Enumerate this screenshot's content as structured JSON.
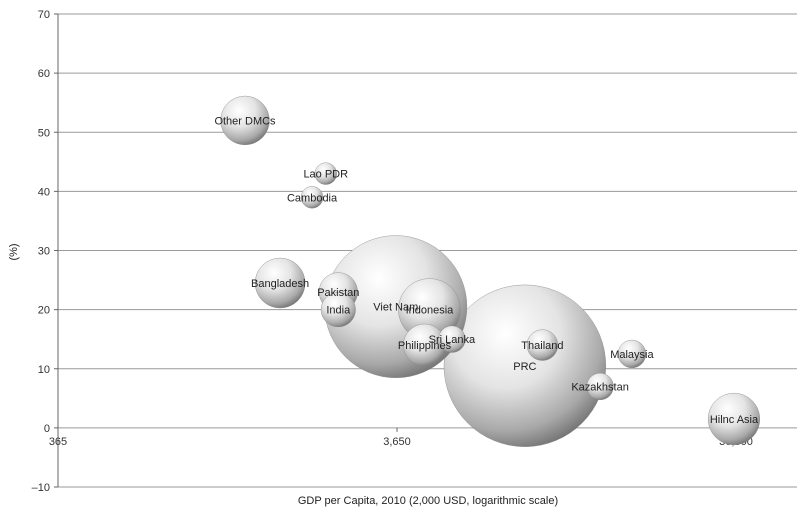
{
  "chart_data": {
    "type": "bubble",
    "title": "",
    "xlabel": "GDP per Capita, 2010 (2,000 USD, logarithmic scale)",
    "ylabel": "(%)",
    "x_scale": "log",
    "xlim": [
      365,
      36500
    ],
    "ylim": [
      -10,
      70
    ],
    "x_ticks": [
      {
        "value": 365,
        "label": "365"
      },
      {
        "value": 3650,
        "label": "3,650"
      },
      {
        "value": 36500,
        "label": "36,500"
      }
    ],
    "y_ticks": [
      {
        "value": -10,
        "label": "–10"
      },
      {
        "value": 0,
        "label": "0"
      },
      {
        "value": 10,
        "label": "10"
      },
      {
        "value": 20,
        "label": "20"
      },
      {
        "value": 30,
        "label": "30"
      },
      {
        "value": 40,
        "label": "40"
      },
      {
        "value": 50,
        "label": "50"
      },
      {
        "value": 60,
        "label": "60"
      },
      {
        "value": 70,
        "label": "70"
      }
    ],
    "grid": "horizontal",
    "legend": "none",
    "points": [
      {
        "label": "Other DMCs",
        "x": 1300,
        "y": 52,
        "size": 4
      },
      {
        "label": "Lao PDR",
        "x": 2250,
        "y": 43,
        "size": 0.8
      },
      {
        "label": "Cambodia",
        "x": 2050,
        "y": 39,
        "size": 0.8
      },
      {
        "label": "Bangladesh",
        "x": 1650,
        "y": 24.5,
        "size": 4.2
      },
      {
        "label": "Pakistan",
        "x": 2450,
        "y": 23,
        "size": 2.5
      },
      {
        "label": "India",
        "x": 2450,
        "y": 20,
        "size": 2
      },
      {
        "label": "Viet Nam",
        "x": 3620,
        "y": 20.5,
        "size": 34
      },
      {
        "label": "Indonesia",
        "x": 4550,
        "y": 20,
        "size": 6.5
      },
      {
        "label": "Sri Lanka",
        "x": 5300,
        "y": 15,
        "size": 1.2
      },
      {
        "label": "Philippines",
        "x": 4400,
        "y": 14,
        "size": 3
      },
      {
        "label": "Thailand",
        "x": 9800,
        "y": 14,
        "size": 1.6
      },
      {
        "label": "PRC",
        "x": 8700,
        "y": 10.5,
        "size": 44
      },
      {
        "label": "Malaysia",
        "x": 18000,
        "y": 12.5,
        "size": 1.3
      },
      {
        "label": "Kazakhstan",
        "x": 14500,
        "y": 7,
        "size": 1.2
      },
      {
        "label": "Hilnc Asia",
        "x": 36000,
        "y": 1.5,
        "size": 4.5
      }
    ]
  }
}
